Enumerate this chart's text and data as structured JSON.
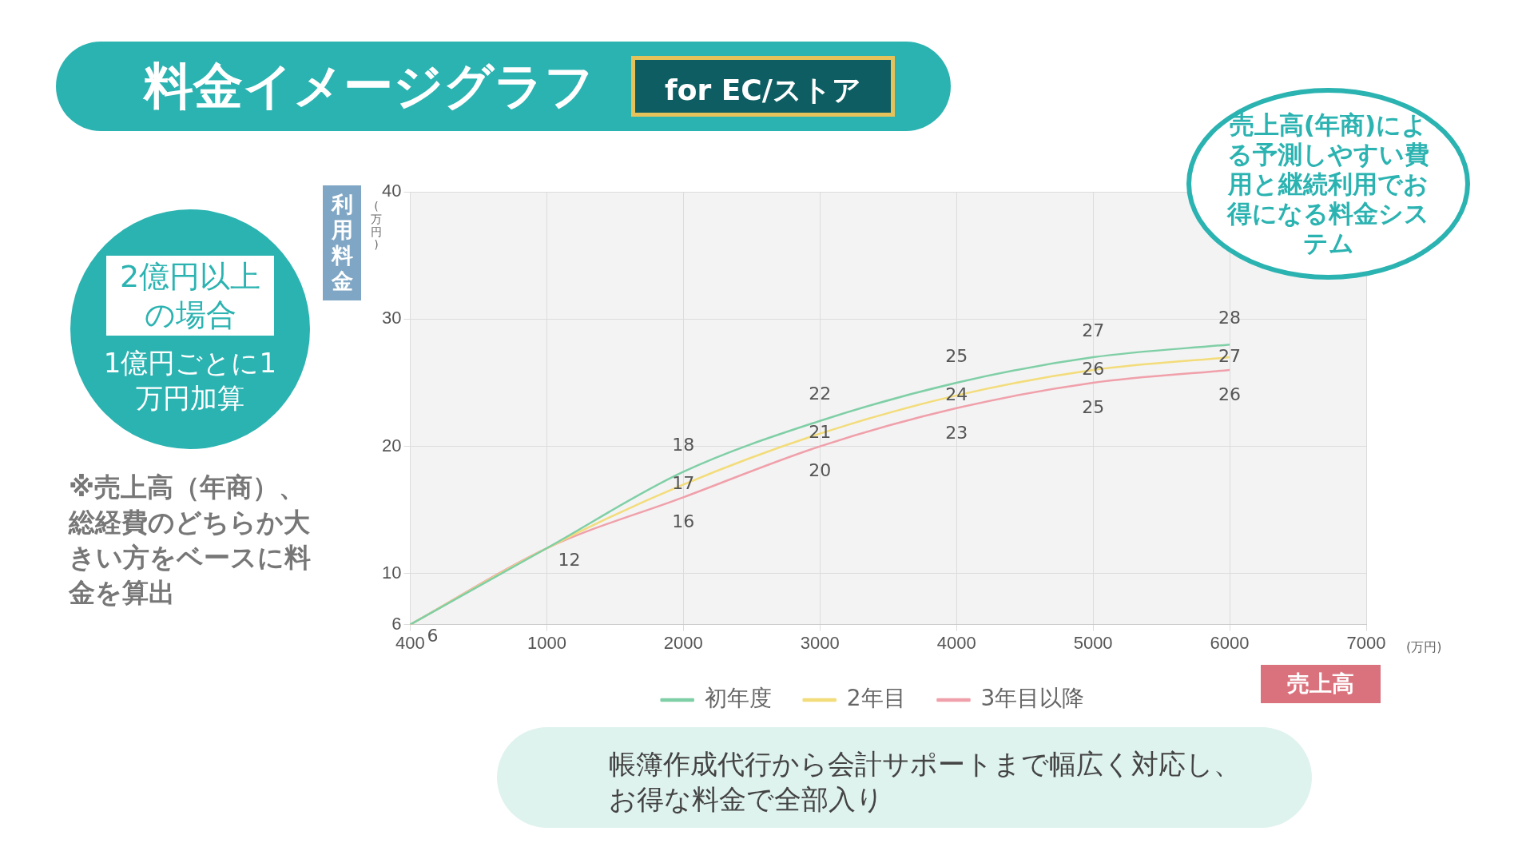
{
  "chart_data": {
    "type": "line",
    "title": "料金イメージグラフ",
    "subtitle": "for EC/ストア",
    "ylabel": "利用料金",
    "xlabel": "売上高",
    "categories": [
      "400",
      "1000",
      "2000",
      "3000",
      "4000",
      "5000",
      "6000",
      "7000"
    ],
    "ylim": [
      6,
      40
    ],
    "yticks": [
      6,
      10,
      20,
      30,
      40
    ],
    "grid": true,
    "legend": "bottom",
    "marker": "none",
    "line_style": "solid",
    "series": [
      {
        "name": "初年度",
        "color": "#7fcfa6",
        "values": [
          6,
          12,
          18,
          22,
          25,
          27,
          28,
          null
        ],
        "value_labels": [
          null,
          null,
          "18",
          "22",
          "25",
          "27",
          "28",
          null
        ]
      },
      {
        "name": "2年目",
        "color": "#f3dc7a",
        "values": [
          6,
          12,
          17,
          21,
          24,
          26,
          27,
          null
        ],
        "value_labels": [
          null,
          null,
          "17",
          "21",
          "24",
          "26",
          "27",
          null
        ]
      },
      {
        "name": "3年目以降",
        "color": "#f0a0aa",
        "values": [
          6,
          12,
          16,
          20,
          23,
          25,
          26,
          null
        ],
        "value_labels": [
          "6",
          "12",
          "16",
          "20",
          "23",
          "25",
          "26",
          null
        ]
      }
    ],
    "annotations": [
      "(万円)",
      "(万円)",
      "2億円以上の場合",
      "1億円ごとに1万円加算",
      "※売上高（年商）、総経費のどちらか大きい方をベースに料金を算出",
      "売上高(年商)による予測しやすい費用と継続利用でお得になる料金システム",
      "帳簿作成代行から会計サポートまで幅広く対応し、お得な料金で全部入り"
    ]
  }
}
